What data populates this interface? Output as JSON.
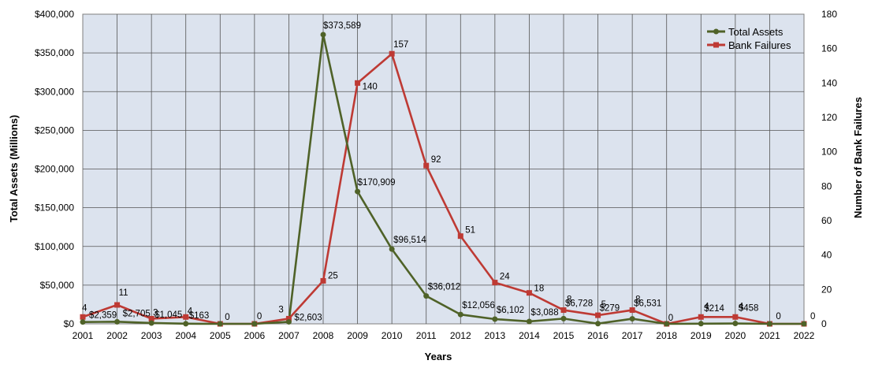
{
  "chart_data": {
    "type": "line",
    "xlabel": "Years",
    "ylabel_left": "Total Assets (Millions)",
    "ylabel_right": "Number of Bank Failures",
    "ylim_left": [
      0,
      400000
    ],
    "ylim_right": [
      0,
      180
    ],
    "yticks_left": [
      "$0",
      "$50,000",
      "$100,000",
      "$150,000",
      "$200,000",
      "$250,000",
      "$300,000",
      "$350,000",
      "$400,000"
    ],
    "yticks_right": [
      "0",
      "20",
      "40",
      "60",
      "80",
      "100",
      "120",
      "140",
      "160",
      "180"
    ],
    "categories": [
      "2001",
      "2002",
      "2003",
      "2004",
      "2005",
      "2006",
      "2007",
      "2008",
      "2009",
      "2010",
      "2011",
      "2012",
      "2013",
      "2014",
      "2015",
      "2016",
      "2017",
      "2018",
      "2019",
      "2020",
      "2021",
      "2022"
    ],
    "grid": true,
    "legend": "top-right",
    "series": [
      {
        "name": "Total Assets",
        "axis": "left",
        "color": "#4f6228",
        "values": [
          2359,
          2705,
          1045,
          163,
          0,
          0,
          2603,
          373589,
          170909,
          96514,
          36012,
          12056,
          6102,
          3088,
          6728,
          279,
          6531,
          0,
          214,
          458,
          0,
          0
        ],
        "labels": [
          "$2,359",
          "$2,705",
          "$1,045",
          "$163",
          "",
          "",
          "$2,603",
          "$373,589",
          "$170,909",
          "$96,514",
          "$36,012",
          "$12,056",
          "$6,102",
          "$3,088",
          "$6,728",
          "$279",
          "$6,531",
          "",
          "$214",
          "$458",
          "",
          ""
        ]
      },
      {
        "name": "Bank Failures",
        "axis": "right",
        "color": "#be3a34",
        "values": [
          4,
          11,
          3,
          4,
          0,
          0,
          3,
          25,
          140,
          157,
          92,
          51,
          24,
          18,
          8,
          5,
          8,
          0,
          4,
          4,
          0,
          0
        ],
        "labels": [
          "4",
          "11",
          "3",
          "4",
          "0",
          "0",
          "3",
          "25",
          "140",
          "157",
          "92",
          "51",
          "24",
          "18",
          "8",
          "5",
          "8",
          "0",
          "4",
          "4",
          "0",
          "0"
        ]
      }
    ]
  }
}
